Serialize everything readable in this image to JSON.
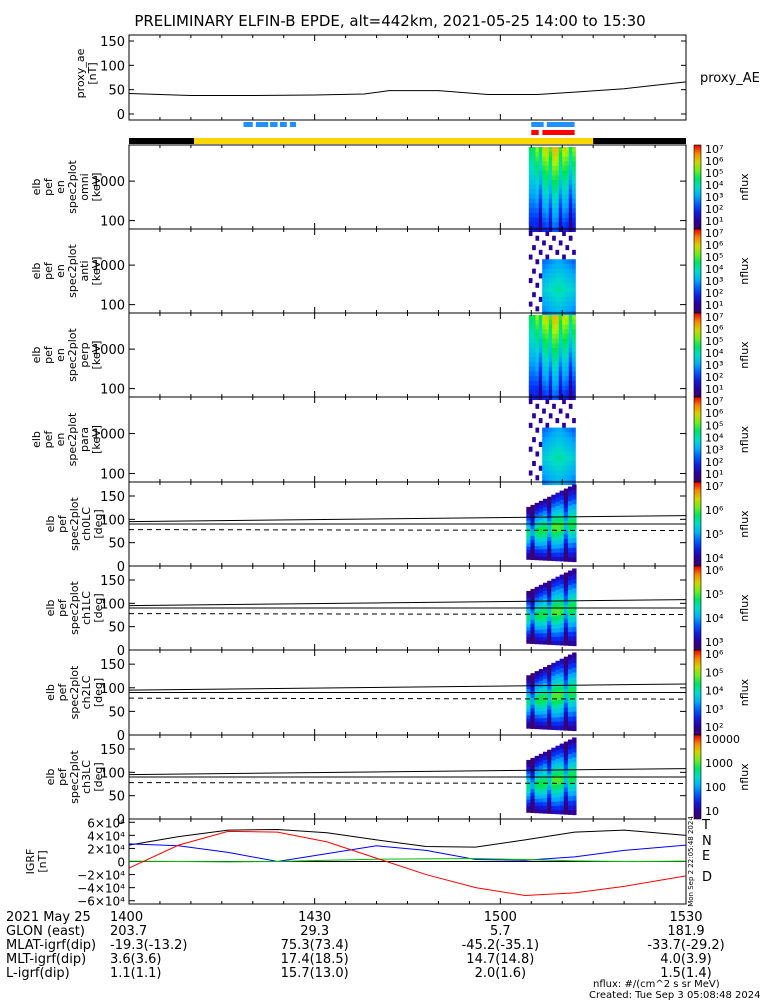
{
  "title": "PRELIMINARY ELFIN-B EPDE, alt=442km, 2021-05-25 14:00 to 15:30",
  "colors": {
    "sci_zone": "#ffd700",
    "shadow_bar": "#000000",
    "epd_marks_blue": "#1e90ff",
    "epd_marks_red": "#ff0000",
    "T": "#000000",
    "N": "#0000ff",
    "E": "#00c000",
    "D": "#ff0000"
  },
  "chart_data": [
    {
      "id": "proxy_ae",
      "type": "line",
      "ylabel": [
        "proxy_ae",
        "[nT]"
      ],
      "yticks": [
        "150",
        "100",
        "50",
        "0"
      ],
      "ylim": [
        0,
        150
      ],
      "legend": "proxy_AE",
      "x_minutes": [
        0,
        10,
        20,
        30,
        38,
        42,
        50,
        58,
        66,
        72,
        80,
        90
      ],
      "values": [
        42,
        38,
        38,
        39,
        41,
        48,
        48,
        40,
        40,
        45,
        52,
        66
      ]
    },
    {
      "id": "en_omni",
      "type": "heatmap",
      "ylabel": [
        "elb",
        "pef",
        "en",
        "spec2plot",
        "omni",
        "[keV]"
      ],
      "yticks": [
        "1000",
        "100"
      ],
      "yscale": "log",
      "cbar_ticks": [
        "10⁷",
        "10⁶",
        "10⁵",
        "10⁴",
        "10³",
        "10²",
        "10¹"
      ],
      "cbar_label": "nflux"
    },
    {
      "id": "en_anti",
      "type": "heatmap",
      "ylabel": [
        "elb",
        "pef",
        "en",
        "spec2plot",
        "anti",
        "[keV]"
      ],
      "yticks": [
        "1000",
        "100"
      ],
      "yscale": "log",
      "cbar_ticks": [
        "10⁷",
        "10⁶",
        "10⁵",
        "10⁴",
        "10³",
        "10²",
        "10¹"
      ],
      "cbar_label": "nflux"
    },
    {
      "id": "en_perp",
      "type": "heatmap",
      "ylabel": [
        "elb",
        "pef",
        "en",
        "spec2plot",
        "perp",
        "[keV]"
      ],
      "yticks": [
        "1000",
        "100"
      ],
      "yscale": "log",
      "cbar_ticks": [
        "10⁷",
        "10⁶",
        "10⁵",
        "10⁴",
        "10³",
        "10²",
        "10¹"
      ],
      "cbar_label": "nflux"
    },
    {
      "id": "en_para",
      "type": "heatmap",
      "ylabel": [
        "elb",
        "pef",
        "en",
        "spec2plot",
        "para",
        "[keV]"
      ],
      "yticks": [
        "1000",
        "100"
      ],
      "yscale": "log",
      "cbar_ticks": [
        "10⁷",
        "10⁶",
        "10⁵",
        "10⁴",
        "10³",
        "10²",
        "10¹"
      ],
      "cbar_label": "nflux"
    },
    {
      "id": "ch0LC",
      "type": "heatmap",
      "ylabel": [
        "elb",
        "pef",
        "spec2plot",
        "ch0LC",
        "[deg]"
      ],
      "yticks": [
        "150",
        "100",
        "50",
        "0"
      ],
      "ylim": [
        0,
        180
      ],
      "cbar_ticks": [
        "10⁷",
        "10⁶",
        "10⁵",
        "10⁴"
      ],
      "cbar_label": "nflux"
    },
    {
      "id": "ch1LC",
      "type": "heatmap",
      "ylabel": [
        "elb",
        "pef",
        "spec2plot",
        "ch1LC",
        "[deg]"
      ],
      "yticks": [
        "150",
        "100",
        "50",
        "0"
      ],
      "ylim": [
        0,
        180
      ],
      "cbar_ticks": [
        "10⁶",
        "10⁵",
        "10⁴",
        "10³"
      ],
      "cbar_label": "nflux"
    },
    {
      "id": "ch2LC",
      "type": "heatmap",
      "ylabel": [
        "elb",
        "pef",
        "spec2plot",
        "ch2LC",
        "[deg]"
      ],
      "yticks": [
        "150",
        "100",
        "50",
        "0"
      ],
      "ylim": [
        0,
        180
      ],
      "cbar_ticks": [
        "10⁶",
        "10⁵",
        "10⁴",
        "10³",
        "10²"
      ],
      "cbar_label": "nflux"
    },
    {
      "id": "ch3LC",
      "type": "heatmap",
      "ylabel": [
        "elb",
        "pef",
        "spec2plot",
        "ch3LC",
        "[deg]"
      ],
      "yticks": [
        "150",
        "100",
        "50",
        "0"
      ],
      "ylim": [
        0,
        180
      ],
      "cbar_ticks": [
        "10000",
        "1000",
        "100",
        "10"
      ],
      "cbar_label": "nflux"
    },
    {
      "id": "igrf",
      "type": "line",
      "ylabel": [
        "IGRF",
        "[nT]"
      ],
      "yticks": [
        "6×10⁴",
        "4×10⁴",
        "2×10⁴",
        "0",
        "−2×10⁴",
        "−4×10⁴",
        "−6×10⁴"
      ],
      "ylim": [
        -65000,
        65000
      ],
      "legend": [
        "T",
        "N",
        "E",
        "D"
      ],
      "x_minutes": [
        0,
        8,
        16,
        24,
        32,
        40,
        48,
        56,
        64,
        72,
        80,
        90
      ],
      "series": [
        {
          "name": "T",
          "values": [
            25000,
            38000,
            48000,
            49000,
            44000,
            33000,
            23000,
            22000,
            33000,
            45000,
            48000,
            40000
          ]
        },
        {
          "name": "N",
          "values": [
            27000,
            24000,
            14000,
            0,
            12000,
            24000,
            17000,
            3000,
            2000,
            7000,
            17000,
            25000
          ]
        },
        {
          "name": "E",
          "values": [
            500,
            0,
            -500,
            0,
            2000,
            3500,
            4000,
            4500,
            3000,
            1000,
            0,
            500
          ]
        },
        {
          "name": "D",
          "values": [
            -10000,
            25000,
            46000,
            45000,
            30000,
            5000,
            -20000,
            -40000,
            -52000,
            -48000,
            -38000,
            -22000
          ]
        }
      ],
      "side_text": "Mon Sep  2 22:05:48 2024"
    }
  ],
  "x_axis": {
    "ticks": [
      "1400",
      "1430",
      "1500",
      "1530"
    ],
    "rows": [
      {
        "label": "2021 May 25",
        "values": [
          "1400",
          "1430",
          "1500",
          "1530"
        ]
      },
      {
        "label": "GLON (east)",
        "values": [
          "203.7",
          "29.3",
          "5.7",
          "181.9"
        ]
      },
      {
        "label": "MLAT-igrf(dip)",
        "values": [
          "-19.3(-13.2)",
          "75.3(73.4)",
          "-45.2(-35.1)",
          "-33.7(-29.2)"
        ]
      },
      {
        "label": "MLT-igrf(dip)",
        "values": [
          "3.6(3.6)",
          "17.4(18.5)",
          "14.7(14.8)",
          "4.0(3.9)"
        ]
      },
      {
        "label": "L-igrf(dip)",
        "values": [
          "1.1(1.1)",
          "15.7(13.0)",
          "2.0(1.6)",
          "1.5(1.4)"
        ]
      }
    ]
  },
  "footer": {
    "units": "nflux: #/(cm^2 s sr MeV)",
    "created": "Created: Tue Sep  3 05:08:48 2024"
  }
}
